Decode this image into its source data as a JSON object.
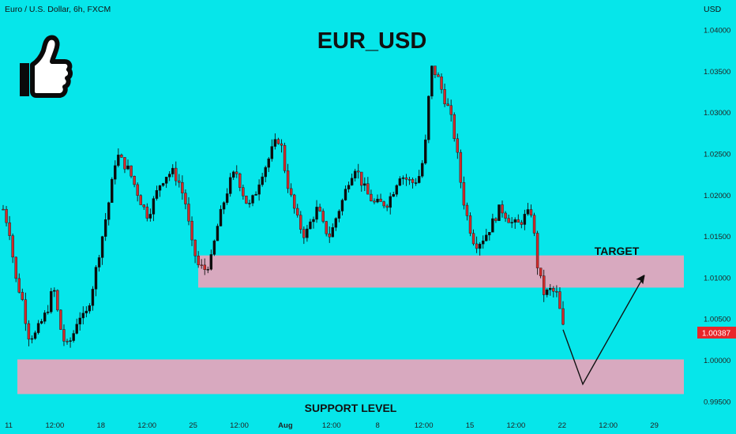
{
  "header": {
    "symbol_line": "Euro / U.S. Dollar, 6h, FXCM"
  },
  "chart": {
    "title": "EUR_USD",
    "currency_label": "USD",
    "last_price_label": "1.00387",
    "target_label": "TARGET",
    "support_label": "SUPPORT LEVEL",
    "thumb_icon": "thumbs-up-icon"
  },
  "colors": {
    "background": "#06e6ea",
    "bull": "#0a0a0a",
    "bear": "#d42a2a",
    "zone": "#d8a9bf",
    "price_tag": "#e8262a"
  },
  "chart_data": {
    "type": "candlestick",
    "title": "EUR_USD",
    "x_ticks": [
      "11",
      "12:00",
      "18",
      "12:00",
      "25",
      "12:00",
      "Aug",
      "12:00",
      "8",
      "12:00",
      "15",
      "12:00",
      "22",
      "12:00",
      "29"
    ],
    "y_ticks": [
      "1.04000",
      "1.03500",
      "1.03000",
      "1.02500",
      "1.02000",
      "1.01500",
      "1.01000",
      "1.00500",
      "1.00000",
      "0.99500"
    ],
    "ylim": [
      0.9946,
      1.0425
    ],
    "last_price": 1.00387,
    "zones": [
      {
        "label": "TARGET",
        "low": 1.0088,
        "high": 1.0127
      },
      {
        "label": "SUPPORT LEVEL",
        "low": 0.9959,
        "high": 1.0001
      }
    ],
    "projection": [
      {
        "point": "start",
        "y": 1.0037
      },
      {
        "point": "low",
        "y": 0.9971
      },
      {
        "point": "end",
        "y": 1.0103
      }
    ],
    "price_path": [
      1.0183,
      1.0157,
      1.0098,
      1.0075,
      1.003,
      1.003,
      1.0045,
      1.006,
      1.009,
      1.0042,
      1.0015,
      1.0028,
      1.0055,
      1.005,
      1.008,
      1.012,
      1.016,
      1.02,
      1.025,
      1.024,
      1.023,
      1.021,
      1.019,
      1.0175,
      1.0195,
      1.0215,
      1.0225,
      1.0228,
      1.0215,
      1.019,
      1.014,
      1.0115,
      1.011,
      1.012,
      1.016,
      1.019,
      1.0215,
      1.023,
      1.0205,
      1.0185,
      1.02,
      1.0225,
      1.024,
      1.026,
      1.027,
      1.022,
      1.019,
      1.0165,
      1.015,
      1.017,
      1.0185,
      1.016,
      1.015,
      1.0175,
      1.0195,
      1.022,
      1.0235,
      1.0215,
      1.02,
      1.019,
      1.019,
      1.019,
      1.0205,
      1.0225,
      1.022,
      1.0215,
      1.022,
      1.025,
      1.0355,
      1.0345,
      1.032,
      1.03,
      1.026,
      1.02,
      1.0165,
      1.014,
      1.0145,
      1.0155,
      1.017,
      1.0185,
      1.0175,
      1.0165,
      1.0165,
      1.0175,
      1.018,
      1.011,
      1.008,
      1.0085,
      1.008,
      1.004
    ]
  }
}
